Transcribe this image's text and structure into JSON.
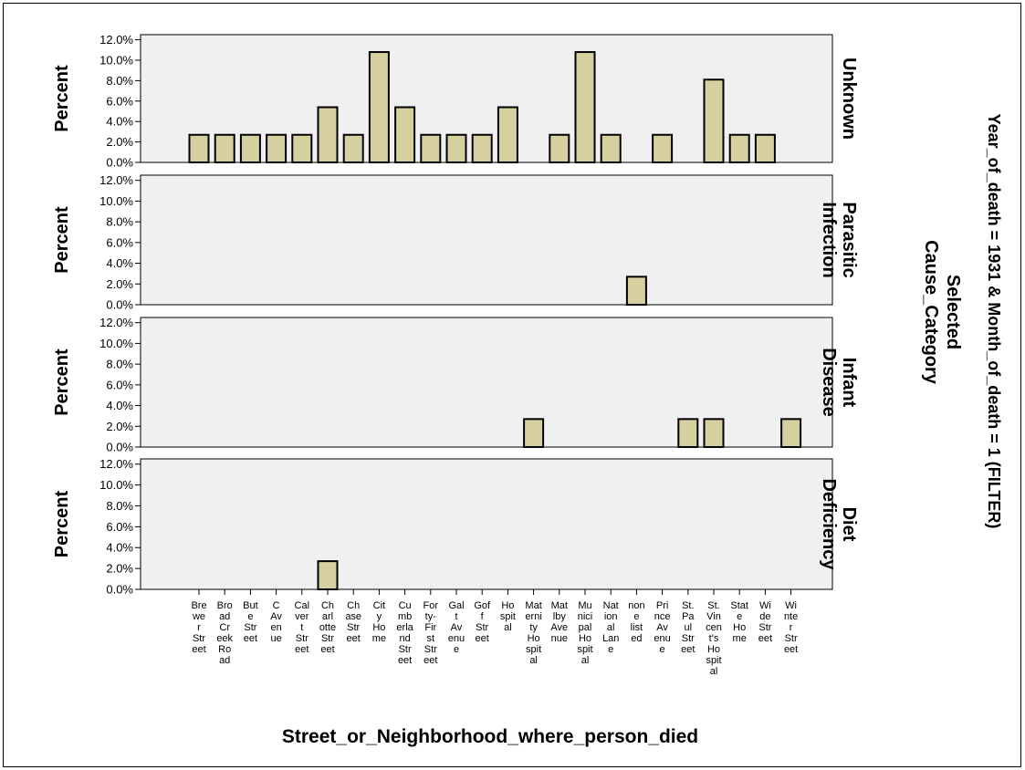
{
  "chart_data": {
    "type": "bar",
    "x_title": "Street_or_Neighborhood_where_person_died",
    "y_label": "Percent",
    "facet_title": "Selected Cause_Category",
    "filter_label": "Year_of_death = 1931  & Month_of_death = 1 (FILTER)",
    "y_ticks": [
      "0.0%",
      "2.0%",
      "4.0%",
      "6.0%",
      "8.0%",
      "10.0%",
      "12.0%"
    ],
    "ylim": [
      0,
      12.5
    ],
    "grid": false,
    "colors": {
      "bar": "#d6cf9f",
      "plot_bg": "#f0f0f0",
      "stroke": "#000000"
    },
    "categories": [
      "Brewer Street",
      "Broad Creek Road",
      "Bute Street",
      "C Avenue",
      "Calvert Street",
      "Charlotte Street",
      "Chase Street",
      "City Home",
      "Cumberland Street",
      "Forty-First Street",
      "Gal Avenue",
      "Goff Street",
      "Hospital",
      "Maternity Hospital",
      "Matlby Avenue",
      "Municipal Hospital",
      "National Lane",
      "none listed",
      "Prince Avenue",
      "St. Paul Street",
      "St. Vincent's Hospital",
      "State Home",
      "Wide Street",
      "Winter Street"
    ],
    "category_lines": [
      [
        "Bre",
        "we",
        "r",
        "Str",
        "eet"
      ],
      [
        "Bro",
        "ad",
        "Cr",
        "eek",
        "Ro",
        "ad"
      ],
      [
        "But",
        "e",
        "Str",
        "eet"
      ],
      [
        "C",
        "Av",
        "en",
        "ue"
      ],
      [
        "Cal",
        "ver",
        "t",
        "Str",
        "eet"
      ],
      [
        "Ch",
        "arl",
        "otte",
        "Str",
        "eet"
      ],
      [
        "Ch",
        "ase",
        "Str",
        "eet"
      ],
      [
        "Cit",
        "y",
        "Ho",
        "me"
      ],
      [
        "Cu",
        "mb",
        "erla",
        "nd",
        "Str",
        "eet"
      ],
      [
        "For",
        "ty-",
        "Fir",
        "st",
        "Str",
        "eet"
      ],
      [
        "Gal",
        "t",
        "Av",
        "enu",
        "e"
      ],
      [
        "Gof",
        "f",
        "Str",
        "eet"
      ],
      [
        "Ho",
        "spit",
        "al"
      ],
      [
        "Mat",
        "erni",
        "ty",
        "Ho",
        "spit",
        "al"
      ],
      [
        "Mat",
        "lby",
        "Ave",
        "nue"
      ],
      [
        "Mu",
        "nici",
        "pal",
        "Ho",
        "spit",
        "al"
      ],
      [
        "Nat",
        "ion",
        "al",
        "Lan",
        "e"
      ],
      [
        "non",
        "e",
        "list",
        "ed"
      ],
      [
        "Pri",
        "nce",
        "Av",
        "enu",
        "e"
      ],
      [
        "St.",
        "Pa",
        "ul",
        "Str",
        "eet"
      ],
      [
        "St.",
        "Vin",
        "cen",
        "t's",
        "Ho",
        "spit",
        "al"
      ],
      [
        "Stat",
        "e",
        "Ho",
        "me"
      ],
      [
        "Wi",
        "de",
        "Str",
        "eet"
      ],
      [
        "Wi",
        "nte",
        "r",
        "Str",
        "eet"
      ]
    ],
    "series": [
      {
        "name": "Unknown",
        "name_lines": [
          "Unknown"
        ],
        "values": [
          2.7,
          2.7,
          2.7,
          2.7,
          2.7,
          5.4,
          2.7,
          10.8,
          5.4,
          2.7,
          2.7,
          2.7,
          5.4,
          0,
          2.7,
          10.8,
          2.7,
          0,
          2.7,
          0,
          8.1,
          2.7,
          2.7,
          0
        ]
      },
      {
        "name": "Parasitic Infection",
        "name_lines": [
          "Parasitic",
          "Infection"
        ],
        "values": [
          0,
          0,
          0,
          0,
          0,
          0,
          0,
          0,
          0,
          0,
          0,
          0,
          0,
          0,
          0,
          0,
          0,
          2.7,
          0,
          0,
          0,
          0,
          0,
          0
        ]
      },
      {
        "name": "Infant Disease",
        "name_lines": [
          "Infant",
          "Disease"
        ],
        "values": [
          0,
          0,
          0,
          0,
          0,
          0,
          0,
          0,
          0,
          0,
          0,
          0,
          0,
          2.7,
          0,
          0,
          0,
          0,
          0,
          2.7,
          2.7,
          0,
          0,
          2.7
        ]
      },
      {
        "name": "Diet Deficiency",
        "name_lines": [
          "Diet",
          "Deficiency"
        ],
        "values": [
          0,
          0,
          0,
          0,
          0,
          2.7,
          0,
          0,
          0,
          0,
          0,
          0,
          0,
          0,
          0,
          0,
          0,
          0,
          0,
          0,
          0,
          0,
          0,
          0
        ]
      }
    ]
  }
}
